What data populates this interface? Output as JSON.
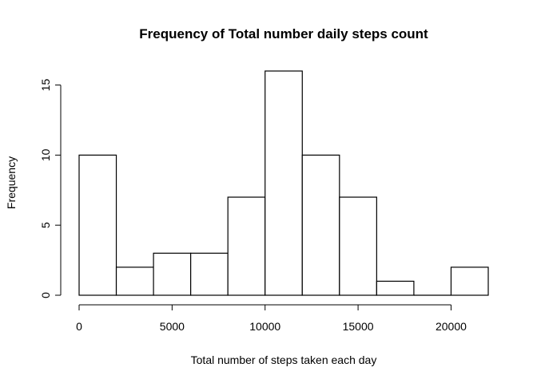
{
  "chart_data": {
    "type": "bar",
    "subtype": "histogram",
    "title": "Frequency of Total number daily steps count",
    "xlabel": "Total number of steps taken each day",
    "ylabel": "Frequency",
    "bins": [
      {
        "start": 0,
        "end": 2000,
        "count": 10
      },
      {
        "start": 2000,
        "end": 4000,
        "count": 2
      },
      {
        "start": 4000,
        "end": 6000,
        "count": 3
      },
      {
        "start": 6000,
        "end": 8000,
        "count": 3
      },
      {
        "start": 8000,
        "end": 10000,
        "count": 7
      },
      {
        "start": 10000,
        "end": 12000,
        "count": 16
      },
      {
        "start": 12000,
        "end": 14000,
        "count": 10
      },
      {
        "start": 14000,
        "end": 16000,
        "count": 7
      },
      {
        "start": 16000,
        "end": 18000,
        "count": 1
      },
      {
        "start": 18000,
        "end": 20000,
        "count": 0
      },
      {
        "start": 20000,
        "end": 22000,
        "count": 2
      }
    ],
    "xticks": [
      0,
      5000,
      10000,
      15000,
      20000
    ],
    "yticks": [
      0,
      5,
      10,
      15
    ],
    "xlim": [
      0,
      22000
    ],
    "ylim": [
      0,
      16
    ],
    "grid": false,
    "bar_fill": "#ffffff",
    "bar_stroke": "#000000"
  }
}
